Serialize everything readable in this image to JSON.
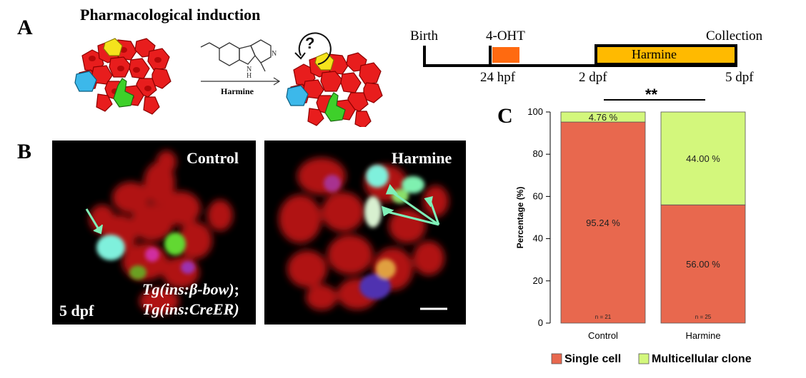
{
  "figure": {
    "panel_a": {
      "letter": "A",
      "title": "Pharmacological induction",
      "reaction_label": "Harmine",
      "question_mark": "?",
      "molecule_nh_label": "N\nH",
      "molecule_n_label": "N"
    },
    "timeline": {
      "top_labels": [
        "Birth",
        "4-OHT",
        "Collection"
      ],
      "bar_label": "Harmine",
      "bottom_labels": [
        "24 hpf",
        "2 dpf",
        "5 dpf"
      ],
      "colors": {
        "ohT": "#ff6a10",
        "harmine": "#ffba00"
      }
    },
    "panel_b": {
      "letter": "B",
      "control_label": "Control",
      "harmine_label": "Harmine",
      "stage_label": "5 dpf",
      "transgene_line1_pre": "Tg(ins:",
      "transgene_line1_beta": "β",
      "transgene_line1_post": "-bow)",
      "transgene_line1_sep": ";",
      "transgene_line2": "Tg(ins:CreER)"
    },
    "panel_c": {
      "letter": "C",
      "significance": "**"
    }
  },
  "chart_data": {
    "type": "bar",
    "stacked": true,
    "categories": [
      "Control",
      "Harmine"
    ],
    "series": [
      {
        "name": "Single cell",
        "values": [
          95.24,
          56.0
        ],
        "labels": [
          "95.24 %",
          "56.00 %"
        ],
        "color": "#e8684e"
      },
      {
        "name": "Multicellular clone",
        "values": [
          4.76,
          44.0
        ],
        "labels": [
          "4.76 %",
          "44.00 %"
        ],
        "color": "#d3f77c"
      }
    ],
    "n_labels": [
      "n = 21",
      "n = 25"
    ],
    "ylabel": "Percentage (%)",
    "xlabel": "",
    "ylim": [
      0,
      100
    ],
    "yticks": [
      "0",
      "20",
      "40",
      "60",
      "80",
      "100"
    ],
    "legend_position": "bottom",
    "grid": false
  }
}
